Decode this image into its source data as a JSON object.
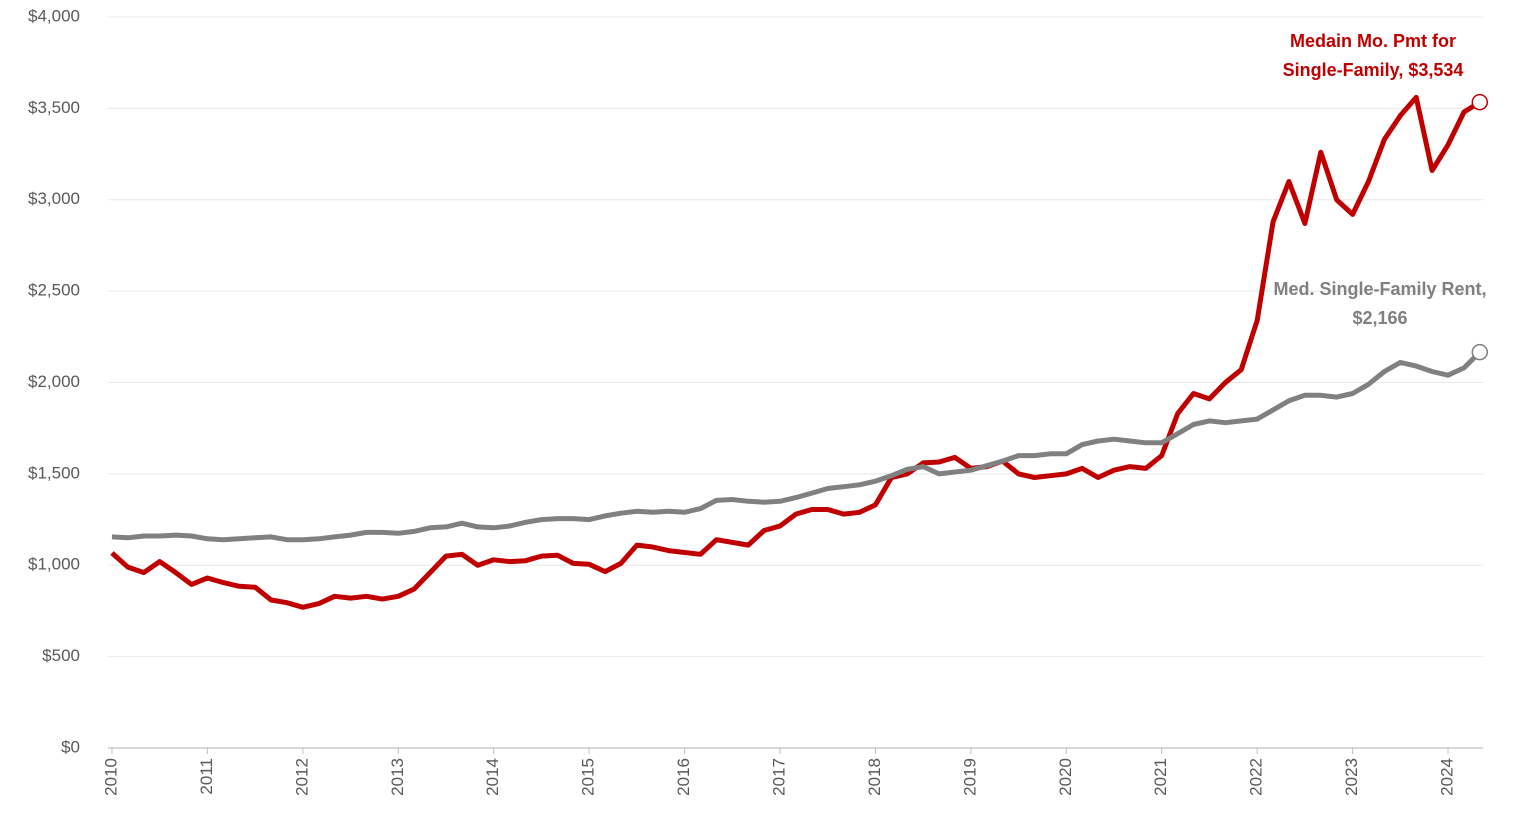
{
  "chart_data": {
    "type": "line",
    "x": [
      2010,
      2010.167,
      2010.333,
      2010.5,
      2010.667,
      2010.833,
      2011,
      2011.167,
      2011.333,
      2011.5,
      2011.667,
      2011.833,
      2012,
      2012.167,
      2012.333,
      2012.5,
      2012.667,
      2012.833,
      2013,
      2013.167,
      2013.333,
      2013.5,
      2013.667,
      2013.833,
      2014,
      2014.167,
      2014.333,
      2014.5,
      2014.667,
      2014.833,
      2015,
      2015.167,
      2015.333,
      2015.5,
      2015.667,
      2015.833,
      2016,
      2016.167,
      2016.333,
      2016.5,
      2016.667,
      2016.833,
      2017,
      2017.167,
      2017.333,
      2017.5,
      2017.667,
      2017.833,
      2018,
      2018.167,
      2018.333,
      2018.5,
      2018.667,
      2018.833,
      2019,
      2019.167,
      2019.333,
      2019.5,
      2019.667,
      2019.833,
      2020,
      2020.167,
      2020.333,
      2020.5,
      2020.667,
      2020.833,
      2021,
      2021.167,
      2021.333,
      2021.5,
      2021.667,
      2021.833,
      2022,
      2022.167,
      2022.333,
      2022.5,
      2022.667,
      2022.833,
      2023,
      2023.167,
      2023.333,
      2023.5,
      2023.667,
      2023.833,
      2024,
      2024.167,
      2024.333
    ],
    "series": [
      {
        "name": "Medain Mo. Pmt for Single-Family",
        "color": "#c00000",
        "values": [
          1067,
          990,
          960,
          1020,
          960,
          895,
          930,
          905,
          885,
          880,
          810,
          795,
          770,
          790,
          830,
          820,
          830,
          815,
          830,
          870,
          960,
          1050,
          1060,
          1000,
          1030,
          1020,
          1025,
          1050,
          1055,
          1010,
          1005,
          965,
          1010,
          1110,
          1100,
          1080,
          1070,
          1060,
          1140,
          1125,
          1110,
          1190,
          1215,
          1280,
          1305,
          1305,
          1280,
          1290,
          1330,
          1480,
          1500,
          1560,
          1565,
          1590,
          1530,
          1540,
          1570,
          1500,
          1480,
          1490,
          1500,
          1530,
          1480,
          1520,
          1540,
          1530,
          1600,
          1830,
          1940,
          1910,
          2000,
          2070,
          2340,
          2880,
          3100,
          2870,
          3260,
          3000,
          2920,
          3100,
          3330,
          3460,
          3560,
          3160,
          3300,
          3480,
          3534
        ]
      },
      {
        "name": "Med. Single-Family Rent",
        "color": "#808080",
        "values": [
          1155,
          1150,
          1160,
          1160,
          1165,
          1160,
          1145,
          1140,
          1145,
          1150,
          1155,
          1140,
          1140,
          1145,
          1155,
          1165,
          1180,
          1180,
          1175,
          1185,
          1205,
          1210,
          1230,
          1210,
          1205,
          1215,
          1235,
          1250,
          1255,
          1255,
          1250,
          1270,
          1285,
          1295,
          1290,
          1295,
          1290,
          1310,
          1355,
          1360,
          1350,
          1345,
          1350,
          1370,
          1395,
          1420,
          1430,
          1440,
          1460,
          1490,
          1525,
          1540,
          1500,
          1510,
          1520,
          1545,
          1570,
          1600,
          1600,
          1610,
          1610,
          1660,
          1680,
          1690,
          1680,
          1670,
          1670,
          1720,
          1770,
          1790,
          1780,
          1790,
          1800,
          1850,
          1900,
          1930,
          1930,
          1920,
          1940,
          1990,
          2060,
          2110,
          2090,
          2060,
          2040,
          2080,
          2166
        ]
      }
    ],
    "annotations": [
      {
        "lines": [
          "Medain Mo. Pmt for",
          "Single-Family, $3,534"
        ],
        "color": "#c00000"
      },
      {
        "lines": [
          "Med. Single-Family Rent,",
          "$2,166"
        ],
        "color": "#808080"
      }
    ],
    "xlim": [
      2010,
      2024.4
    ],
    "xticks": [
      2010,
      2011,
      2012,
      2013,
      2014,
      2015,
      2016,
      2017,
      2018,
      2019,
      2020,
      2021,
      2022,
      2023,
      2024
    ],
    "ylim": [
      0,
      4000
    ],
    "yticks": [
      {
        "value": 0,
        "label": "$0"
      },
      {
        "value": 500,
        "label": "$500"
      },
      {
        "value": 1000,
        "label": "$1,000"
      },
      {
        "value": 1500,
        "label": "$1,500"
      },
      {
        "value": 2000,
        "label": "$2,000"
      },
      {
        "value": 2500,
        "label": "$2,500"
      },
      {
        "value": 3000,
        "label": "$3,000"
      },
      {
        "value": 3500,
        "label": "$3,500"
      },
      {
        "value": 4000,
        "label": "$4,000"
      }
    ],
    "grid": true
  }
}
